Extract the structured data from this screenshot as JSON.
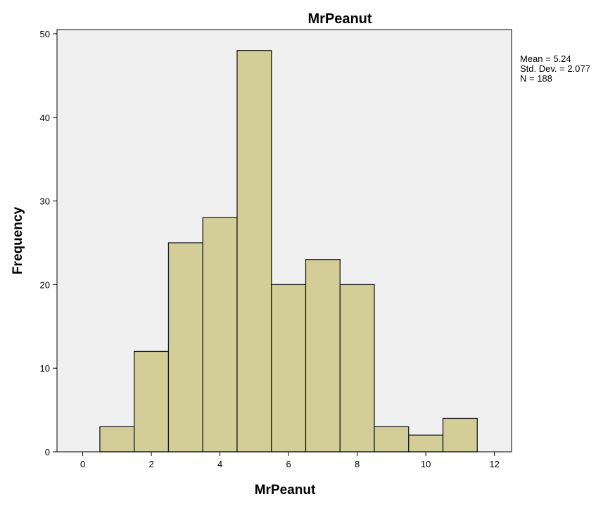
{
  "chart_data": {
    "type": "bar",
    "title": "MrPeanut",
    "xlabel": "MrPeanut",
    "ylabel": "Frequency",
    "bin_width": 1,
    "bins": [
      {
        "x0": 0.5,
        "x1": 1.5,
        "value": 3
      },
      {
        "x0": 1.5,
        "x1": 2.5,
        "value": 12
      },
      {
        "x0": 2.5,
        "x1": 3.5,
        "value": 25
      },
      {
        "x0": 3.5,
        "x1": 4.5,
        "value": 28
      },
      {
        "x0": 4.5,
        "x1": 5.5,
        "value": 48
      },
      {
        "x0": 5.5,
        "x1": 6.5,
        "value": 20
      },
      {
        "x0": 6.5,
        "x1": 7.5,
        "value": 23
      },
      {
        "x0": 7.5,
        "x1": 8.5,
        "value": 20
      },
      {
        "x0": 8.5,
        "x1": 9.5,
        "value": 3
      },
      {
        "x0": 9.5,
        "x1": 10.5,
        "value": 2
      },
      {
        "x0": 10.5,
        "x1": 11.5,
        "value": 4
      }
    ],
    "xlim": [
      -0.75,
      12.5
    ],
    "ylim": [
      0,
      50.5
    ],
    "xticks": [
      0,
      2,
      4,
      6,
      8,
      10,
      12
    ],
    "yticks": [
      0,
      10,
      20,
      30,
      40,
      50
    ],
    "grid": false,
    "stats": {
      "mean": "Mean = 5.24",
      "std_dev": "Std. Dev. = 2.077",
      "n": "N = 188"
    },
    "colors": {
      "bar_fill": "#d3ce98",
      "bar_stroke": "#1a1a1a",
      "plot_background": "#f0f0f0",
      "frame": "#000000"
    }
  }
}
